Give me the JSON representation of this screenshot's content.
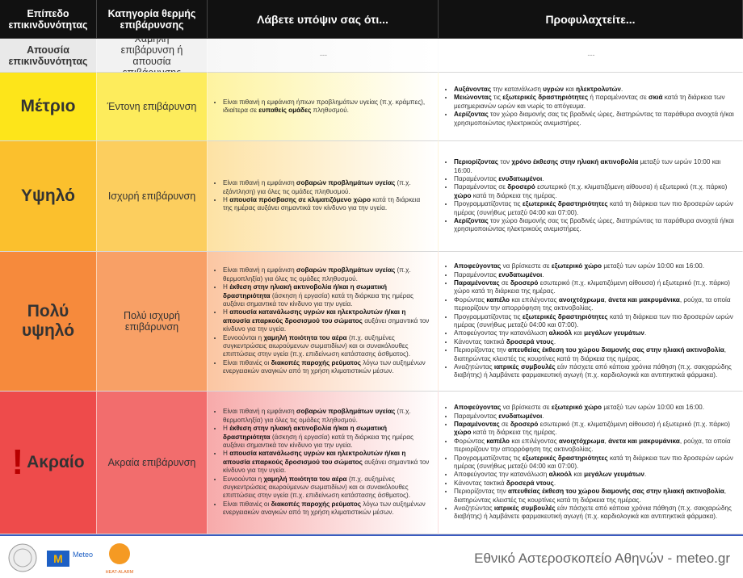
{
  "header": {
    "columns": [
      "Επίπεδο επικινδυνότητας",
      "Κατηγορία θερμής επιβάρυνσης",
      "Λάβετε υπόψιν σας ότι...",
      "Προφυλαχτείτε..."
    ]
  },
  "rows": [
    {
      "level": "Απουσία επικινδυνότητας",
      "category": "Χαμηλή επιβάρυνση ή απουσία επιβάρυνσης",
      "notes": "---",
      "precautions": "---"
    },
    {
      "level": "Μέτριο",
      "category": "Έντονη επιβάρυνση",
      "notes": [
        [
          "Είναι πιθανή η εμφάνιση ήπιων προβλημάτων υγείας (π.χ. κράμπες), ιδιαίτερα σε ",
          {
            "text": "ευπαθείς ομάδες",
            "bold": true
          },
          " πληθυσμού."
        ]
      ],
      "precautions": [
        [
          {
            "text": "Αυξάνοντας",
            "bold": true
          },
          " την κατανάλωση ",
          {
            "text": "υγρών",
            "bold": true
          },
          " και ",
          {
            "text": "ηλεκτρολυτών",
            "bold": true
          },
          "."
        ],
        [
          {
            "text": "Μειώνοντας",
            "bold": true
          },
          " τις ",
          {
            "text": "εξωτερικές δραστηριότητες",
            "bold": true
          },
          " ή παραμένοντας σε ",
          {
            "text": "σκιά",
            "bold": true
          },
          " κατά τη διάρκεια των μεσημεριανών ωρών και νωρίς το απόγευμα."
        ],
        [
          {
            "text": "Αερίζοντας",
            "bold": true
          },
          " τον χώρο διαμονής σας τις βραδινές ώρες, διατηρώντας τα παράθυρα ανοιχτά ή/και χρησιμοποιώντας ηλεκτρικούς ανεμιστήρες."
        ]
      ]
    },
    {
      "level": "Υψηλό",
      "category": "Ισχυρή επιβάρυνση",
      "notes": [
        [
          "Είναι πιθανή η εμφάνιση ",
          {
            "text": "σοβαρών προβλημάτων υγείας",
            "bold": true
          },
          " (π.χ. εξάντληση) για όλες τις ομάδες πληθυσμού."
        ],
        [
          "Η ",
          {
            "text": "απουσία πρόσβασης σε κλιματιζόμενο χώρο",
            "bold": true
          },
          " κατά τη διάρκεια της ημέρας αυξάνει σημαντικά τον κίνδυνο για την υγεία."
        ]
      ],
      "precautions": [
        [
          {
            "text": "Περιορίζοντας",
            "bold": true
          },
          " τον ",
          {
            "text": "χρόνο έκθεσης στην ηλιακή ακτινοβολία",
            "bold": true
          },
          " μεταξύ των ωρών 10:00 και 16:00."
        ],
        [
          "Παραμένοντας ",
          {
            "text": "ενυδατωμένοι",
            "bold": true
          },
          "."
        ],
        [
          "Παραμένοντας σε ",
          {
            "text": "δροσερό",
            "bold": true
          },
          " εσωτερικό (π.χ. κλιματιζόμενη αίθουσα) ή εξωτερικό (π.χ. πάρκο) ",
          {
            "text": "χώρο",
            "bold": true
          },
          " κατά τη διάρκεια της ημέρας."
        ],
        [
          "Προγραμματίζοντας τις ",
          {
            "text": "εξωτερικές δραστηριότητες",
            "bold": true
          },
          " κατά τη διάρκεια των πιο δροσερών ωρών ημέρας (συνήθως μεταξύ 04:00 και 07:00)."
        ],
        [
          {
            "text": "Αερίζοντας",
            "bold": true
          },
          " τον χώρο διαμονής σας τις βραδινές ώρες, διατηρώντας τα παράθυρα ανοιχτά ή/και χρησιμοποιώντας ηλεκτρικούς ανεμιστήρες."
        ]
      ]
    },
    {
      "level": "Πολύ υψηλό",
      "category": "Πολύ ισχυρή επιβάρυνση",
      "notes": [
        [
          "Είναι πιθανή η εμφάνιση ",
          {
            "text": "σοβαρών προβλημάτων υγείας",
            "bold": true
          },
          " (π.χ. θερμοπληξία) για όλες τις ομάδες πληθυσμού."
        ],
        [
          "Η ",
          {
            "text": "έκθεση στην ηλιακή ακτινοβολία ή/και η σωματική δραστηριότητα",
            "bold": true
          },
          " (άσκηση ή εργασία) κατά τη διάρκεια της ημέρας αυξάνει σημαντικά τον κίνδυνο για την υγεία."
        ],
        [
          "Η ",
          {
            "text": "απουσία κατανάλωσης υγρών και ηλεκτρολυτών ή/και η απουσία επαρκούς δροσισμού του σώματος",
            "bold": true
          },
          " αυξάνει σημαντικά τον κίνδυνο για την υγεία."
        ],
        [
          "Ευνοούνται η ",
          {
            "text": "χαμηλή ποιότητα του αέρα",
            "bold": true
          },
          " (π.χ. αυξημένες συγκεντρώσεις αιωρούμενων σωματιδίων) και οι συνακόλουθες επιπτώσεις στην υγεία (π.χ. επιδείνωση κατάστασης άσθματος)."
        ],
        [
          "Είναι πιθανές οι ",
          {
            "text": "διακοπές παροχής ρεύματος",
            "bold": true
          },
          " λόγω των αυξημένων ενεργειακών αναγκών από τη χρήση κλιματιστικών μέσων."
        ]
      ],
      "precautions": [
        [
          {
            "text": "Αποφεύγοντας",
            "bold": true
          },
          " να βρίσκεστε σε ",
          {
            "text": "εξωτερικό χώρο",
            "bold": true
          },
          " μεταξύ των ωρών 10:00 και 16:00."
        ],
        [
          "Παραμένοντας ",
          {
            "text": "ενυδατωμένοι",
            "bold": true
          },
          "."
        ],
        [
          {
            "text": "Παραμένοντας",
            "bold": true
          },
          " σε ",
          {
            "text": "δροσερό",
            "bold": true
          },
          " εσωτερικό (π.χ. κλιματιζόμενη αίθουσα) ή εξωτερικό (π.χ. πάρκο) χώρο κατά τη διάρκεια της ημέρας."
        ],
        [
          "Φορώντας ",
          {
            "text": "καπέλο",
            "bold": true
          },
          " και επιλέγοντας ",
          {
            "text": "ανοιχτόχρωμα",
            "bold": true
          },
          ", ",
          {
            "text": "άνετα και μακρυμάνικα",
            "bold": true
          },
          ", ρούχα, τα οποία περιορίζουν την απορρόφηση της ακτινοβολίας."
        ],
        [
          "Προγραμματίζοντας τις ",
          {
            "text": "εξωτερικές δραστηριότητες",
            "bold": true
          },
          " κατά τη διάρκεια των πιο δροσερών ωρών ημέρας (συνήθως μεταξύ 04:00 και 07:00)."
        ],
        [
          "Αποφεύγοντας την κατανάλωση ",
          {
            "text": "αλκοόλ",
            "bold": true
          },
          " και ",
          {
            "text": "μεγάλων γευμάτων",
            "bold": true
          },
          "."
        ],
        [
          "Κάνοντας τακτικά ",
          {
            "text": "δροσερά ντους",
            "bold": true
          },
          "."
        ],
        [
          "Περιορίζοντας την ",
          {
            "text": "απευθείας έκθεση του χώρου διαμονής σας στην ηλιακή ακτινοβολία",
            "bold": true
          },
          ", διατηρώντας κλειστές τις κουρτίνες κατά τη διάρκεια της ημέρας."
        ],
        [
          "Αναζητώντας ",
          {
            "text": "ιατρικές συμβουλές",
            "bold": true
          },
          " εάν πάσχετε από κάποια χρόνια πάθηση (π.χ. σακχαρώδης διαβήτης) ή λαμβάνετε φαρμακευτική αγωγή (π.χ. καρδιολογικά και αντιπηκτικά φάρμακα)."
        ]
      ]
    },
    {
      "level": "Ακραίο",
      "category": "Ακραία επιβάρυνση",
      "notes": [
        [
          "Είναι πιθανή η εμφάνιση ",
          {
            "text": "σοβαρών προβλημάτων υγείας",
            "bold": true
          },
          " (π.χ. θερμοπληξία) για όλες τις ομάδες πληθυσμού."
        ],
        [
          "Η ",
          {
            "text": "έκθεση στην ηλιακή ακτινοβολία ή/και η σωματική δραστηριότητα",
            "bold": true
          },
          " (άσκηση ή εργασία) κατά τη διάρκεια της ημέρας αυξάνει σημαντικά τον κίνδυνο για την υγεία."
        ],
        [
          "Η ",
          {
            "text": "απουσία κατανάλωσης υγρών και ηλεκτρολυτών ή/και η απουσία επαρκούς δροσισμού του σώματος",
            "bold": true
          },
          " αυξάνει σημαντικά τον κίνδυνο για την υγεία."
        ],
        [
          "Ευνοούνται η ",
          {
            "text": "χαμηλή ποιότητα του αέρα",
            "bold": true
          },
          " (π.χ. αυξημένες συγκεντρώσεις αιωρούμενων σωματιδίων) και οι συνακόλουθες επιπτώσεις στην υγεία (π.χ. επιδείνωση κατάστασης άσθματος)."
        ],
        [
          "Είναι πιθανές οι ",
          {
            "text": "διακοπές παροχής ρεύματος",
            "bold": true
          },
          " λόγω των αυξημένων ενεργειακών αναγκών από τη χρήση κλιματιστικών μέσων."
        ]
      ],
      "precautions": [
        [
          {
            "text": "Αποφεύγοντας",
            "bold": true
          },
          " να βρίσκεστε σε ",
          {
            "text": "εξωτερικό χώρο",
            "bold": true
          },
          " μεταξύ των ωρών 10:00 και 16:00."
        ],
        [
          "Παραμένοντας ",
          {
            "text": "ενυδατωμένοι",
            "bold": true
          },
          "."
        ],
        [
          {
            "text": "Παραμένοντας",
            "bold": true
          },
          " σε ",
          {
            "text": "δροσερό",
            "bold": true
          },
          " εσωτερικό (π.χ. κλιματιζόμενη αίθουσα) ή εξωτερικό (π.χ. πάρκο) ",
          {
            "text": "χώρο",
            "bold": true
          },
          " κατά τη διάρκεια της ημέρας."
        ],
        [
          "Φορώντας ",
          {
            "text": "καπέλο",
            "bold": true
          },
          " και επιλέγοντας ",
          {
            "text": "ανοιχτόχρωμα",
            "bold": true
          },
          ", ",
          {
            "text": "άνετα και μακρυμάνικα",
            "bold": true
          },
          ", ρούχα, τα οποία περιορίζουν την απορρόφηση της ακτινοβολίας."
        ],
        [
          "Προγραμματίζοντας τις ",
          {
            "text": "εξωτερικές δραστηριότητες",
            "bold": true
          },
          " κατά τη διάρκεια των πιο δροσερών ωρών ημέρας (συνήθως μεταξύ 04:00 και 07:00)."
        ],
        [
          "Αποφεύγοντας την κατανάλωση ",
          {
            "text": "αλκοόλ",
            "bold": true
          },
          " και ",
          {
            "text": "μεγάλων γευμάτων",
            "bold": true
          },
          "."
        ],
        [
          "Κάνοντας τακτικά ",
          {
            "text": "δροσερά ντους",
            "bold": true
          },
          "."
        ],
        [
          "Περιορίζοντας την ",
          {
            "text": "απευθείας έκθεση του χώρου διαμονής σας στην ηλιακή ακτινοβολία",
            "bold": true
          },
          ", διατηρώντας κλειστές τις κουρτίνες κατά τη διάρκεια της ημέρας."
        ],
        [
          "Αναζητώντας ",
          {
            "text": "ιατρικές συμβουλές",
            "bold": true
          },
          " εάν πάσχετε από κάποια χρόνια πάθηση (π.χ. σακχαρώδης διαβήτης) ή λαμβάνετε φαρμακευτική αγωγή (π.χ. καρδιολογικά και αντιπηκτικά φάρμακα)."
        ]
      ]
    }
  ],
  "footer": {
    "text": "Εθνικό Αστεροσκοπείο Αθηνών - meteo.gr",
    "logos": [
      "Meteo",
      "HEAT-ALARM"
    ]
  }
}
